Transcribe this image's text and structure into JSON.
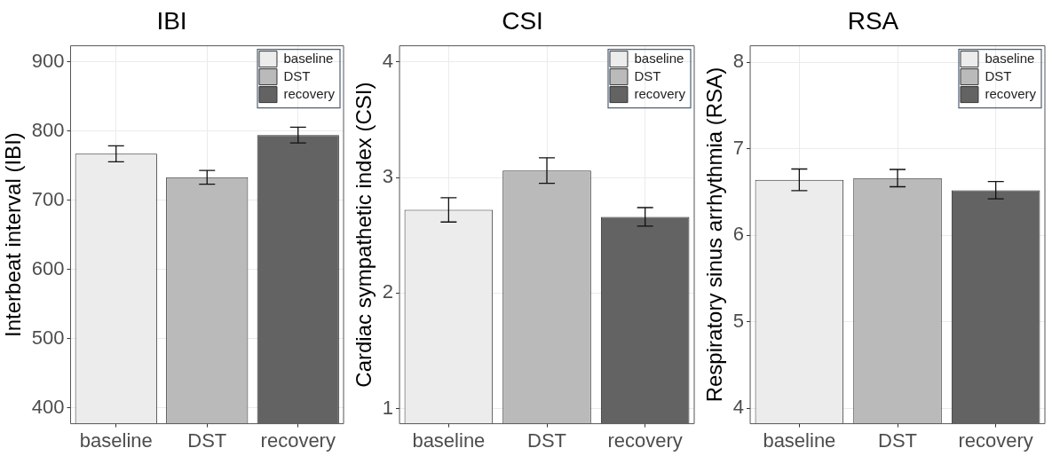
{
  "chart_data": [
    {
      "type": "bar",
      "title": "IBI",
      "ylabel": "Interbeat interval (IBI)",
      "categories": [
        "baseline",
        "DST",
        "recovery"
      ],
      "ylim": [
        377,
        923
      ],
      "yticks": [
        400,
        500,
        600,
        700,
        800,
        900
      ],
      "grid": true,
      "legend": "top right",
      "series": [
        {
          "name": "baseline",
          "color": "#ececec",
          "values": [
            767,
            null,
            null
          ],
          "errors": [
            11.5,
            null,
            null
          ]
        },
        {
          "name": "DST",
          "color": "#bababa",
          "values": [
            null,
            733,
            null
          ],
          "errors": [
            null,
            10,
            null
          ]
        },
        {
          "name": "recovery",
          "color": "#636363",
          "values": [
            null,
            null,
            794
          ],
          "errors": [
            null,
            null,
            11.5
          ]
        }
      ]
    },
    {
      "type": "bar",
      "title": "CSI",
      "ylabel": "Cardiac sympathetic index (CSI)",
      "categories": [
        "baseline",
        "DST",
        "recovery"
      ],
      "ylim": [
        0.87,
        4.14
      ],
      "yticks": [
        1,
        2,
        3,
        4
      ],
      "grid": true,
      "legend": "top right",
      "series": [
        {
          "name": "baseline",
          "color": "#ececec",
          "values": [
            2.72,
            null,
            null
          ],
          "errors": [
            0.105,
            null,
            null
          ]
        },
        {
          "name": "DST",
          "color": "#bababa",
          "values": [
            null,
            3.06,
            null
          ],
          "errors": [
            null,
            0.11,
            null
          ]
        },
        {
          "name": "recovery",
          "color": "#636363",
          "values": [
            null,
            null,
            2.66
          ],
          "errors": [
            null,
            null,
            0.08
          ]
        }
      ]
    },
    {
      "type": "bar",
      "title": "RSA",
      "ylabel": "Respiratory sinus arrhythmia (RSA)",
      "categories": [
        "baseline",
        "DST",
        "recovery"
      ],
      "ylim": [
        3.82,
        8.19
      ],
      "yticks": [
        4,
        5,
        6,
        7,
        8
      ],
      "grid": true,
      "legend": "top right",
      "series": [
        {
          "name": "baseline",
          "color": "#ececec",
          "values": [
            6.64,
            null,
            null
          ],
          "errors": [
            0.125,
            null,
            null
          ]
        },
        {
          "name": "DST",
          "color": "#bababa",
          "values": [
            null,
            6.66,
            null
          ],
          "errors": [
            null,
            0.1,
            null
          ]
        },
        {
          "name": "recovery",
          "color": "#636363",
          "values": [
            null,
            null,
            6.52
          ],
          "errors": [
            null,
            null,
            0.1
          ]
        }
      ]
    }
  ]
}
